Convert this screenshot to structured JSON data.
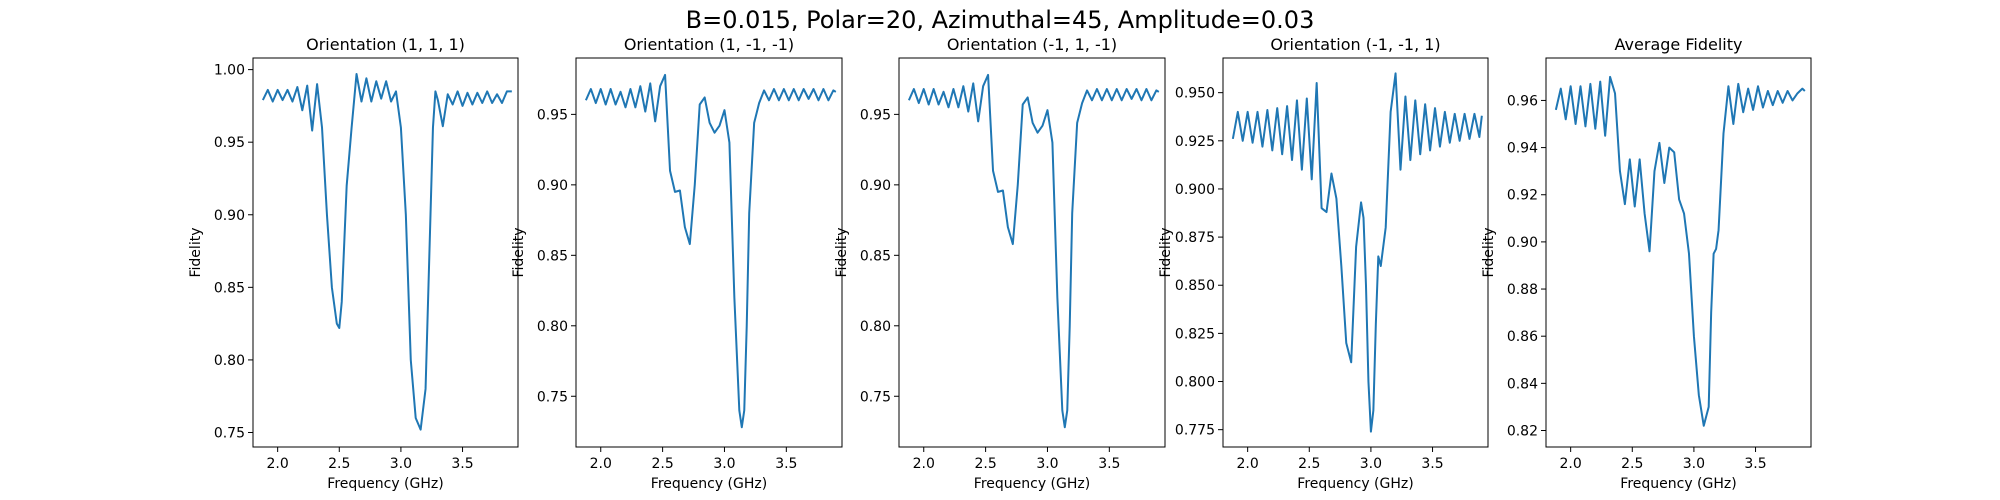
{
  "figure": {
    "suptitle": "B=0.015, Polar=20, Azimuthal=45, Amplitude=0.03",
    "line_color": "#1f77b4"
  },
  "chart_data": [
    {
      "type": "line",
      "title": "Orientation (1, 1, 1)",
      "xlabel": "Frequency (GHz)",
      "ylabel": "Fidelity",
      "xlim": [
        1.8,
        3.95
      ],
      "ylim": [
        0.74,
        1.008
      ],
      "xticks": [
        "2.0",
        "2.5",
        "3.0",
        "3.5"
      ],
      "yticks": [
        "0.75",
        "0.80",
        "0.85",
        "0.90",
        "0.95",
        "1.00"
      ],
      "x": [
        1.88,
        1.92,
        1.96,
        2.0,
        2.04,
        2.08,
        2.12,
        2.16,
        2.2,
        2.24,
        2.28,
        2.32,
        2.36,
        2.4,
        2.44,
        2.48,
        2.5,
        2.52,
        2.54,
        2.56,
        2.6,
        2.64,
        2.68,
        2.72,
        2.76,
        2.8,
        2.84,
        2.88,
        2.92,
        2.96,
        3.0,
        3.04,
        3.08,
        3.12,
        3.16,
        3.2,
        3.24,
        3.26,
        3.28,
        3.3,
        3.34,
        3.38,
        3.42,
        3.46,
        3.5,
        3.54,
        3.58,
        3.62,
        3.66,
        3.7,
        3.74,
        3.78,
        3.82,
        3.86,
        3.9
      ],
      "series": [
        {
          "values": [
            0.979,
            0.986,
            0.978,
            0.986,
            0.979,
            0.986,
            0.978,
            0.988,
            0.972,
            0.989,
            0.958,
            0.99,
            0.96,
            0.9,
            0.85,
            0.825,
            0.822,
            0.84,
            0.88,
            0.92,
            0.96,
            0.997,
            0.978,
            0.994,
            0.978,
            0.992,
            0.98,
            0.992,
            0.978,
            0.985,
            0.96,
            0.9,
            0.8,
            0.76,
            0.752,
            0.78,
            0.9,
            0.96,
            0.985,
            0.979,
            0.961,
            0.983,
            0.976,
            0.985,
            0.975,
            0.984,
            0.976,
            0.984,
            0.977,
            0.985,
            0.977,
            0.983,
            0.977,
            0.985,
            0.985
          ]
        }
      ]
    },
    {
      "type": "line",
      "title": "Orientation (1, -1, -1)",
      "xlabel": "Frequency (GHz)",
      "ylabel": "Fidelity",
      "xlim": [
        1.8,
        3.95
      ],
      "ylim": [
        0.714,
        0.99
      ],
      "xticks": [
        "2.0",
        "2.5",
        "3.0",
        "3.5"
      ],
      "yticks": [
        "0.75",
        "0.80",
        "0.85",
        "0.90",
        "0.95"
      ],
      "x": [
        1.88,
        1.92,
        1.96,
        2.0,
        2.04,
        2.08,
        2.12,
        2.16,
        2.2,
        2.24,
        2.28,
        2.32,
        2.36,
        2.4,
        2.44,
        2.48,
        2.52,
        2.56,
        2.6,
        2.64,
        2.68,
        2.72,
        2.76,
        2.8,
        2.84,
        2.88,
        2.92,
        2.96,
        3.0,
        3.04,
        3.08,
        3.12,
        3.14,
        3.16,
        3.18,
        3.2,
        3.24,
        3.28,
        3.32,
        3.36,
        3.4,
        3.44,
        3.48,
        3.52,
        3.56,
        3.6,
        3.64,
        3.68,
        3.72,
        3.76,
        3.8,
        3.84,
        3.88,
        3.9
      ],
      "series": [
        {
          "values": [
            0.96,
            0.968,
            0.958,
            0.968,
            0.957,
            0.968,
            0.957,
            0.966,
            0.955,
            0.968,
            0.955,
            0.97,
            0.952,
            0.972,
            0.945,
            0.97,
            0.978,
            0.91,
            0.895,
            0.896,
            0.87,
            0.858,
            0.9,
            0.957,
            0.962,
            0.944,
            0.937,
            0.942,
            0.953,
            0.93,
            0.82,
            0.74,
            0.728,
            0.74,
            0.8,
            0.88,
            0.944,
            0.958,
            0.967,
            0.96,
            0.968,
            0.96,
            0.968,
            0.96,
            0.968,
            0.96,
            0.968,
            0.961,
            0.968,
            0.96,
            0.968,
            0.96,
            0.967,
            0.966
          ]
        }
      ]
    },
    {
      "type": "line",
      "title": "Orientation (-1, 1, -1)",
      "xlabel": "Frequency (GHz)",
      "ylabel": "Fidelity",
      "xlim": [
        1.8,
        3.95
      ],
      "ylim": [
        0.714,
        0.99
      ],
      "xticks": [
        "2.0",
        "2.5",
        "3.0",
        "3.5"
      ],
      "yticks": [
        "0.75",
        "0.80",
        "0.85",
        "0.90",
        "0.95"
      ],
      "x": [
        1.88,
        1.92,
        1.96,
        2.0,
        2.04,
        2.08,
        2.12,
        2.16,
        2.2,
        2.24,
        2.28,
        2.32,
        2.36,
        2.4,
        2.44,
        2.48,
        2.52,
        2.56,
        2.6,
        2.64,
        2.68,
        2.72,
        2.76,
        2.8,
        2.84,
        2.88,
        2.92,
        2.96,
        3.0,
        3.04,
        3.08,
        3.12,
        3.14,
        3.16,
        3.18,
        3.2,
        3.24,
        3.28,
        3.32,
        3.36,
        3.4,
        3.44,
        3.48,
        3.52,
        3.56,
        3.6,
        3.64,
        3.68,
        3.72,
        3.76,
        3.8,
        3.84,
        3.88,
        3.9
      ],
      "series": [
        {
          "values": [
            0.96,
            0.968,
            0.958,
            0.968,
            0.957,
            0.968,
            0.957,
            0.966,
            0.955,
            0.968,
            0.955,
            0.97,
            0.952,
            0.972,
            0.945,
            0.97,
            0.978,
            0.91,
            0.895,
            0.896,
            0.87,
            0.858,
            0.9,
            0.957,
            0.962,
            0.944,
            0.937,
            0.942,
            0.953,
            0.93,
            0.82,
            0.74,
            0.728,
            0.74,
            0.8,
            0.88,
            0.944,
            0.958,
            0.967,
            0.96,
            0.968,
            0.96,
            0.968,
            0.96,
            0.968,
            0.96,
            0.968,
            0.961,
            0.968,
            0.96,
            0.968,
            0.96,
            0.967,
            0.966
          ]
        }
      ]
    },
    {
      "type": "line",
      "title": "Orientation (-1, -1, 1)",
      "xlabel": "Frequency (GHz)",
      "ylabel": "Fidelity",
      "xlim": [
        1.8,
        3.95
      ],
      "ylim": [
        0.766,
        0.968
      ],
      "xticks": [
        "2.0",
        "2.5",
        "3.0",
        "3.5"
      ],
      "yticks": [
        "0.775",
        "0.800",
        "0.825",
        "0.850",
        "0.875",
        "0.900",
        "0.925",
        "0.950"
      ],
      "x": [
        1.88,
        1.92,
        1.96,
        2.0,
        2.04,
        2.08,
        2.12,
        2.16,
        2.2,
        2.24,
        2.28,
        2.32,
        2.36,
        2.4,
        2.44,
        2.48,
        2.52,
        2.56,
        2.6,
        2.64,
        2.68,
        2.72,
        2.76,
        2.8,
        2.84,
        2.88,
        2.92,
        2.94,
        2.96,
        2.98,
        3.0,
        3.02,
        3.04,
        3.06,
        3.08,
        3.12,
        3.16,
        3.2,
        3.24,
        3.28,
        3.32,
        3.36,
        3.4,
        3.44,
        3.48,
        3.52,
        3.56,
        3.6,
        3.64,
        3.68,
        3.72,
        3.76,
        3.8,
        3.84,
        3.88,
        3.9
      ],
      "series": [
        {
          "values": [
            0.926,
            0.94,
            0.925,
            0.94,
            0.924,
            0.94,
            0.922,
            0.941,
            0.92,
            0.942,
            0.918,
            0.943,
            0.915,
            0.946,
            0.91,
            0.947,
            0.905,
            0.955,
            0.89,
            0.888,
            0.908,
            0.895,
            0.86,
            0.82,
            0.81,
            0.87,
            0.893,
            0.885,
            0.85,
            0.8,
            0.774,
            0.785,
            0.83,
            0.865,
            0.86,
            0.88,
            0.94,
            0.96,
            0.91,
            0.948,
            0.915,
            0.946,
            0.918,
            0.944,
            0.92,
            0.942,
            0.922,
            0.94,
            0.924,
            0.939,
            0.925,
            0.939,
            0.926,
            0.939,
            0.927,
            0.938
          ]
        }
      ]
    },
    {
      "type": "line",
      "title": "Average Fidelity",
      "xlabel": "Frequency (GHz)",
      "ylabel": "Fidelity",
      "xlim": [
        1.8,
        3.95
      ],
      "ylim": [
        0.813,
        0.978
      ],
      "xticks": [
        "2.0",
        "2.5",
        "3.0",
        "3.5"
      ],
      "yticks": [
        "0.82",
        "0.84",
        "0.86",
        "0.88",
        "0.90",
        "0.92",
        "0.94",
        "0.96"
      ],
      "x": [
        1.88,
        1.92,
        1.96,
        2.0,
        2.04,
        2.08,
        2.12,
        2.16,
        2.2,
        2.24,
        2.28,
        2.32,
        2.36,
        2.4,
        2.44,
        2.48,
        2.52,
        2.56,
        2.6,
        2.64,
        2.68,
        2.72,
        2.76,
        2.8,
        2.84,
        2.88,
        2.92,
        2.96,
        3.0,
        3.04,
        3.08,
        3.12,
        3.14,
        3.16,
        3.18,
        3.2,
        3.24,
        3.28,
        3.32,
        3.36,
        3.4,
        3.44,
        3.48,
        3.52,
        3.56,
        3.6,
        3.64,
        3.68,
        3.72,
        3.76,
        3.8,
        3.84,
        3.88,
        3.9
      ],
      "series": [
        {
          "values": [
            0.956,
            0.965,
            0.952,
            0.966,
            0.95,
            0.966,
            0.949,
            0.967,
            0.948,
            0.968,
            0.945,
            0.97,
            0.963,
            0.93,
            0.916,
            0.935,
            0.915,
            0.935,
            0.912,
            0.896,
            0.93,
            0.942,
            0.925,
            0.94,
            0.938,
            0.918,
            0.912,
            0.895,
            0.86,
            0.835,
            0.822,
            0.83,
            0.87,
            0.895,
            0.897,
            0.905,
            0.946,
            0.966,
            0.95,
            0.967,
            0.955,
            0.965,
            0.956,
            0.966,
            0.957,
            0.964,
            0.958,
            0.964,
            0.959,
            0.964,
            0.96,
            0.963,
            0.965,
            0.964
          ]
        }
      ]
    }
  ]
}
